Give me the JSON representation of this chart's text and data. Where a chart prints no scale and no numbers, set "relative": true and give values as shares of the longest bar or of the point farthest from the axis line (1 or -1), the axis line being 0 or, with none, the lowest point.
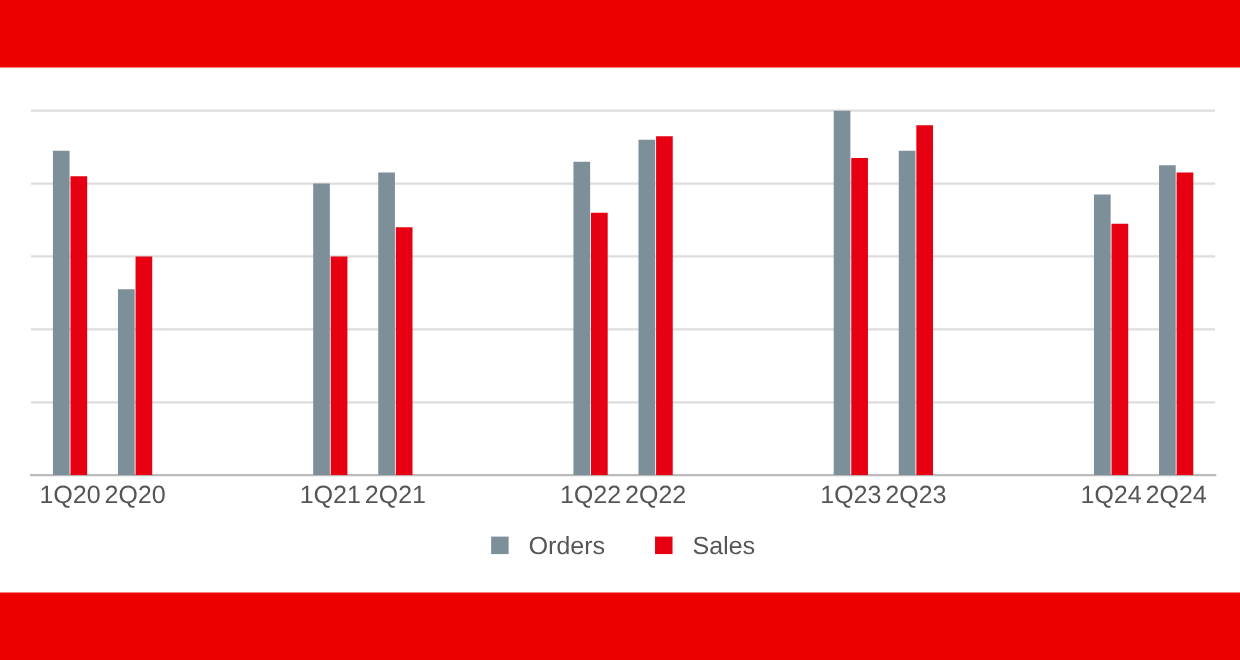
{
  "chart_data": {
    "type": "bar",
    "relative": true,
    "grid": "y",
    "legend": "bottom",
    "categories": [
      "1Q20",
      "2Q20",
      null,
      null,
      "1Q21",
      "2Q21",
      null,
      null,
      "1Q22",
      "2Q22",
      null,
      null,
      "1Q23",
      "2Q23",
      null,
      null,
      "1Q24",
      "2Q24"
    ],
    "series": [
      {
        "name": "Orders",
        "color": "#7d9099",
        "values": [
          0.89,
          0.51,
          null,
          null,
          0.8,
          0.83,
          null,
          null,
          0.86,
          0.92,
          null,
          null,
          1,
          0.89,
          null,
          null,
          0.77,
          0.85
        ]
      },
      {
        "name": "Sales",
        "color": "#e60012",
        "values": [
          0.82,
          0.6,
          null,
          null,
          0.6,
          0.68,
          null,
          null,
          0.72,
          0.93,
          null,
          null,
          0.87,
          0.96,
          null,
          null,
          0.69,
          0.83
        ]
      }
    ]
  }
}
